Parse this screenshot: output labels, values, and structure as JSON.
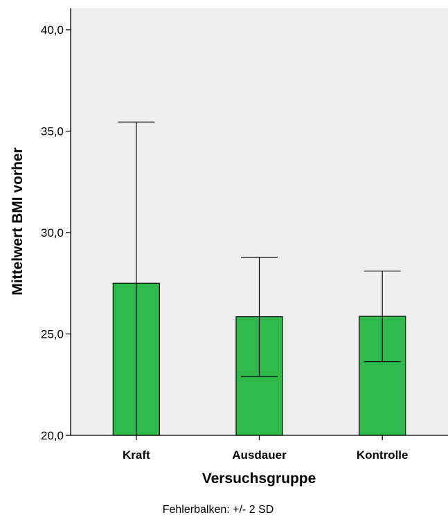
{
  "chart_data": {
    "type": "bar",
    "categories": [
      "Kraft",
      "Ausdauer",
      "Kontrolle"
    ],
    "values": [
      27.5,
      25.85,
      25.87
    ],
    "error_low": [
      19.5,
      22.9,
      23.63
    ],
    "error_high": [
      35.45,
      28.78,
      28.1
    ],
    "xlabel": "Versuchsgruppe",
    "ylabel": "Mittelwert BMI vorher",
    "ylim": [
      20,
      40
    ],
    "yticks": [
      20,
      25,
      30,
      35,
      40
    ],
    "ytick_labels": [
      "20,0",
      "25,0",
      "30,0",
      "35,0",
      "40,0"
    ],
    "note": "Fehlerbalken: +/- 2 SD",
    "bar_color": "#2eb94b",
    "background_color": "#efefef",
    "grid": false
  }
}
